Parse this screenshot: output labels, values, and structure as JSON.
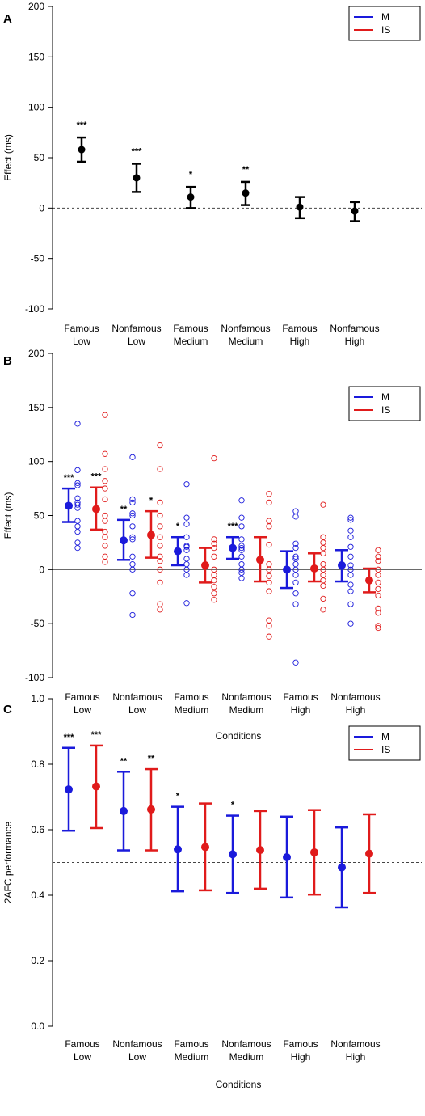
{
  "colors": {
    "M": "#1a1adb",
    "IS": "#e01b1b",
    "single": "#000000"
  },
  "chart_data": [
    {
      "panel": "A",
      "type": "errorbar",
      "ylabel": "Effect (ms)",
      "xlabel": "",
      "ylim": [
        -100,
        200
      ],
      "yticks": [
        "200",
        "150",
        "100",
        "50",
        "0",
        "-50",
        "-100"
      ],
      "reference_line": {
        "y": 0,
        "style": "dashed"
      },
      "legend": [
        "M",
        "IS"
      ],
      "legend_position": "top-right",
      "categories": [
        {
          "line1": "Famous",
          "line2": "Low"
        },
        {
          "line1": "Nonfamous",
          "line2": "Low"
        },
        {
          "line1": "Famous",
          "line2": "Medium"
        },
        {
          "line1": "Nonfamous",
          "line2": "Medium"
        },
        {
          "line1": "Famous",
          "line2": "High"
        },
        {
          "line1": "Nonfamous",
          "line2": "High"
        }
      ],
      "series": [
        {
          "values": [
            58,
            30,
            11,
            15,
            1,
            -3
          ],
          "lower": [
            46,
            16,
            0,
            3,
            -10,
            -13
          ],
          "upper": [
            70,
            44,
            21,
            26,
            11,
            6
          ],
          "sig": [
            "***",
            "***",
            "*",
            "**",
            "",
            ""
          ]
        }
      ]
    },
    {
      "panel": "B",
      "type": "errorbar-scatter",
      "ylabel": "Effect (ms)",
      "xlabel": "Conditions",
      "ylim": [
        -100,
        200
      ],
      "yticks": [
        "200",
        "150",
        "100",
        "50",
        "0",
        "-50",
        "-100"
      ],
      "reference_line": {
        "y": 0,
        "style": "solid"
      },
      "legend_position": "top-right",
      "categories": [
        {
          "line1": "Famous",
          "line2": "Low"
        },
        {
          "line1": "Nonfamous",
          "line2": "Low"
        },
        {
          "line1": "Famous",
          "line2": "Medium"
        },
        {
          "line1": "Nonfamous",
          "line2": "Medium"
        },
        {
          "line1": "Famous",
          "line2": "High"
        },
        {
          "line1": "Nonfamous",
          "line2": "High"
        }
      ],
      "series": [
        {
          "name": "M",
          "values": [
            59,
            27,
            17,
            20,
            0,
            4
          ],
          "lower": [
            44,
            9,
            4,
            10,
            -17,
            -11
          ],
          "upper": [
            75,
            46,
            30,
            30,
            17,
            18
          ],
          "sig": [
            "***",
            "**",
            "*",
            "***",
            "",
            ""
          ],
          "points": [
            [
              135,
              92,
              80,
              78,
              66,
              62,
              60,
              57,
              45,
              40,
              35,
              25,
              20
            ],
            [
              104,
              65,
              62,
              52,
              50,
              40,
              30,
              28,
              12,
              5,
              0,
              -22,
              -42
            ],
            [
              79,
              48,
              42,
              30,
              22,
              21,
              18,
              10,
              5,
              0,
              -5,
              -31
            ],
            [
              64,
              48,
              40,
              28,
              22,
              20,
              18,
              12,
              5,
              0,
              -3,
              -8
            ],
            [
              54,
              49,
              24,
              20,
              12,
              10,
              5,
              0,
              -5,
              -12,
              -22,
              -32,
              -86
            ],
            [
              48,
              46,
              36,
              30,
              21,
              12,
              4,
              0,
              -5,
              -14,
              -20,
              -32,
              -50
            ]
          ]
        },
        {
          "name": "IS",
          "values": [
            56,
            32,
            4,
            9,
            1,
            -10
          ],
          "lower": [
            37,
            11,
            -12,
            -11,
            -11,
            -21
          ],
          "upper": [
            76,
            54,
            20,
            30,
            15,
            1
          ],
          "sig": [
            "***",
            "*",
            "",
            "",
            "",
            ""
          ],
          "points": [
            [
              143,
              107,
              93,
              82,
              75,
              65,
              50,
              45,
              35,
              30,
              22,
              12,
              7
            ],
            [
              115,
              93,
              62,
              50,
              40,
              30,
              22,
              12,
              8,
              0,
              -12,
              -32,
              -37
            ],
            [
              103,
              28,
              24,
              20,
              12,
              0,
              -5,
              -10,
              -16,
              -22,
              -28
            ],
            [
              70,
              62,
              45,
              40,
              23,
              5,
              0,
              -6,
              -12,
              -20,
              -47,
              -52,
              -62
            ],
            [
              60,
              30,
              25,
              20,
              15,
              5,
              0,
              -5,
              -10,
              -15,
              -27,
              -37
            ],
            [
              18,
              12,
              8,
              0,
              -5,
              -12,
              -18,
              -24,
              -36,
              -40,
              -52,
              -54
            ]
          ]
        }
      ]
    },
    {
      "panel": "C",
      "type": "errorbar",
      "ylabel": "2AFC performance",
      "xlabel": "Conditions",
      "ylim": [
        0,
        1
      ],
      "yticks": [
        "1.0",
        "0.8",
        "0.6",
        "0.4",
        "0.2",
        "0.0"
      ],
      "reference_line": {
        "y": 0.5,
        "style": "dashed"
      },
      "legend_position": "top-right",
      "categories": [
        {
          "line1": "Famous",
          "line2": "Low"
        },
        {
          "line1": "Nonfamous",
          "line2": "Low"
        },
        {
          "line1": "Famous",
          "line2": "Medium"
        },
        {
          "line1": "Nonfamous",
          "line2": "Medium"
        },
        {
          "line1": "Famous",
          "line2": "High"
        },
        {
          "line1": "Nonfamous",
          "line2": "High"
        }
      ],
      "series": [
        {
          "name": "M",
          "values": [
            0.723,
            0.657,
            0.54,
            0.525,
            0.516,
            0.485
          ],
          "lower": [
            0.597,
            0.537,
            0.412,
            0.407,
            0.393,
            0.363
          ],
          "upper": [
            0.85,
            0.777,
            0.67,
            0.643,
            0.64,
            0.607
          ],
          "sig": [
            "***",
            "**",
            "*",
            "*",
            "",
            ""
          ]
        },
        {
          "name": "IS",
          "values": [
            0.732,
            0.662,
            0.547,
            0.538,
            0.531,
            0.527
          ],
          "lower": [
            0.605,
            0.537,
            0.415,
            0.42,
            0.402,
            0.407
          ],
          "upper": [
            0.857,
            0.785,
            0.68,
            0.657,
            0.66,
            0.647
          ],
          "sig": [
            "***",
            "**",
            "",
            "",
            "",
            ""
          ]
        }
      ]
    }
  ]
}
